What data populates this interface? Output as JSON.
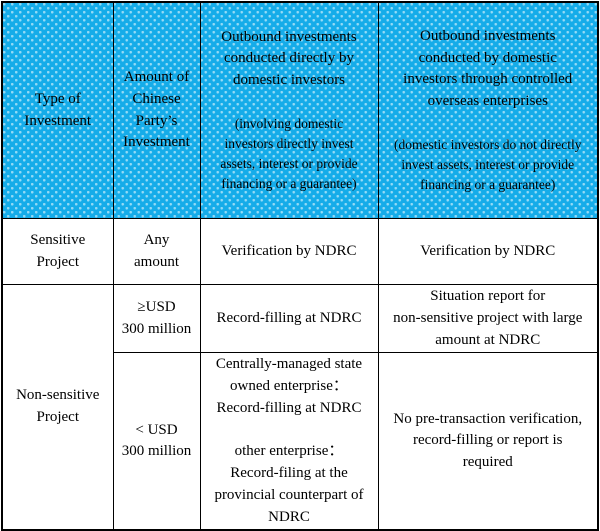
{
  "colors": {
    "header_bg": "#15ACE9",
    "header_text": "#FFFFFF",
    "body_text": "#000000",
    "border": "#000000"
  },
  "header": {
    "type_of_investment": "Type of\nInvestment",
    "amount_of_investment": "Amount of\nChinese\nParty’s\nInvestment",
    "direct": {
      "title": "Outbound investments\nconducted directly by\ndomestic investors",
      "subtitle": "(involving domestic\ninvestors directly invest\nassets, interest or provide\nfinancing or a guarantee)"
    },
    "controlled": {
      "title": "Outbound investments\nconducted by domestic\ninvestors through controlled\noverseas enterprises",
      "subtitle": "(domestic investors do not directly\ninvest assets, interest or provide\nfinancing or a guarantee)"
    }
  },
  "rows": {
    "sensitive": {
      "type_label": "Sensitive\nProject",
      "amount": "Any\namount",
      "direct": "Verification by NDRC",
      "controlled": "Verification by NDRC"
    },
    "nonsensitive_label": "Non-sensitive\nProject",
    "nonsensitive_large": {
      "amount": "≥USD\n300 million",
      "direct": "Record-filling at NDRC",
      "controlled": "Situation report for\nnon-sensitive project with large\namount at NDRC"
    },
    "nonsensitive_small": {
      "amount": "< USD\n300 million",
      "direct": "Centrally-managed state\nowned enterprise：\nRecord-filling at NDRC\n\nother enterprise：\nRecord-filing at the\nprovincial counterpart of\nNDRC",
      "controlled": "No pre-transaction verification,\nrecord-filling or report is\nrequired"
    }
  }
}
